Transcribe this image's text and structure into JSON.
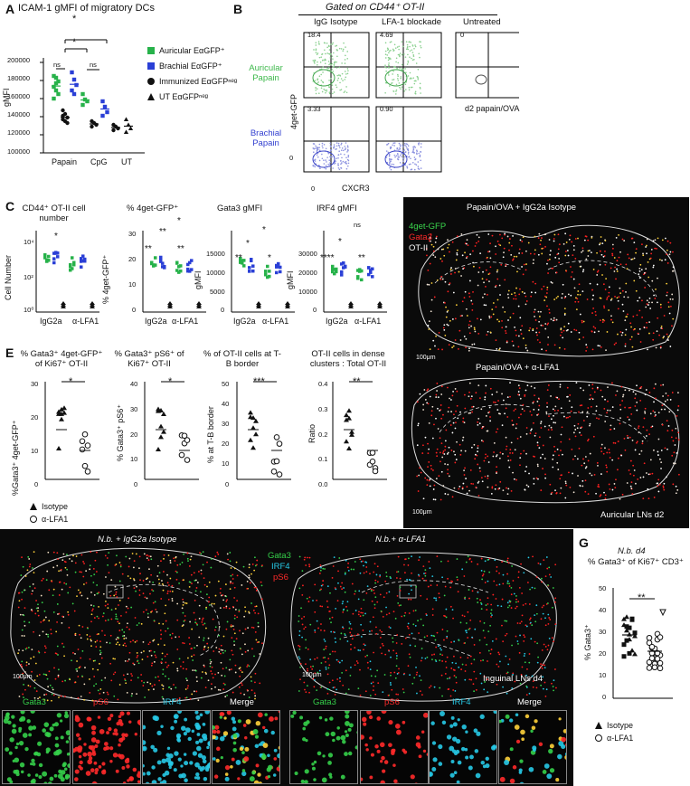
{
  "panels": {
    "A": {
      "letter": "A",
      "title": "ICAM-1 gMFI of migratory DCs",
      "ylabel": "gMFI",
      "yticks": [
        "100000",
        "120000",
        "140000",
        "160000",
        "180000",
        "200000"
      ],
      "xgroups": [
        "Papain",
        "CpG",
        "UT"
      ],
      "sig": [
        "*",
        "*",
        "ns",
        "ns"
      ],
      "legend": [
        "Auricular EαGFP⁺",
        "Brachial EαGFP⁺",
        "Immunized EαGFPⁿᵉᵍ",
        "UT EαGFPⁿᵉᵍ"
      ],
      "colors": {
        "auricular": "#27b24a",
        "brachial": "#2a3fd6",
        "neg": "#111111"
      }
    },
    "B": {
      "letter": "B",
      "header": "Gated on CD44⁺ OT-II",
      "columns": [
        "IgG Isotype",
        "LFA-1 blockade",
        "Untreated"
      ],
      "rows": [
        "Auricular Papain",
        "Brachial Papain"
      ],
      "ylabel": "4get-GFP",
      "xlabel": "CXCR3",
      "untreated_label": "d2 papain/OVA",
      "percents": [
        "18.4",
        "4.69",
        "0",
        "3.33",
        "0.90"
      ],
      "axis_zero": "0"
    },
    "C": {
      "letter": "C",
      "subpanels": [
        {
          "title": "CD44⁺ OT-II cell number",
          "ylabel": "Cell Number",
          "yticks": [
            "10⁰",
            "10²",
            "10⁴"
          ],
          "sig": [
            "*"
          ]
        },
        {
          "title": "% 4get-GFP⁺",
          "ylabel": "% 4get-GFP⁺",
          "yticks": [
            "0",
            "10",
            "20",
            "30"
          ],
          "sig": [
            "*",
            "**",
            "**",
            "**"
          ]
        },
        {
          "title": "Gata3 gMFI",
          "ylabel": "gMFI",
          "yticks": [
            "0",
            "5000",
            "10000",
            "15000"
          ],
          "sig": [
            "*",
            "*",
            "**",
            "*"
          ]
        },
        {
          "title": "IRF4 gMFI",
          "ylabel": "gMFI",
          "yticks": [
            "0",
            "10000",
            "20000",
            "30000"
          ],
          "sig": [
            "ns",
            "*",
            "****",
            "**"
          ]
        }
      ],
      "xlabels": [
        "IgG2a",
        "α-LFA1"
      ]
    },
    "D": {
      "letter": "D",
      "top_title": "Papain/OVA + IgG2a Isotype",
      "bottom_title": "Papain/OVA + α-LFA1",
      "legend": [
        "4get-GFP",
        "Gata3",
        "OT-II"
      ],
      "scale1": "100μm",
      "scale2": "100μm",
      "footer": "Auricular LNs d2"
    },
    "E": {
      "letter": "E",
      "subpanels": [
        {
          "title": "% Gata3⁺ 4get-GFP⁺ of Ki67⁺ OT-II",
          "ylabel": "%Gata3⁺ 4get-GFP⁺",
          "yticks": [
            "0",
            "10",
            "20",
            "30"
          ],
          "sig": "*"
        },
        {
          "title": "% Gata3⁺ pS6⁺ of Ki67⁺ OT-II",
          "ylabel": "% Gata3⁺ pS6⁺",
          "yticks": [
            "0",
            "10",
            "20",
            "30",
            "40"
          ],
          "sig": "*"
        },
        {
          "title": "% of OT-II cells at T-B border",
          "ylabel": "% at T-B border",
          "yticks": [
            "0",
            "10",
            "20",
            "30",
            "40",
            "50"
          ],
          "sig": "***"
        },
        {
          "title": "OT-II cells in dense clusters : Total OT-II",
          "ylabel": "Ratio",
          "yticks": [
            "0.0",
            "0.1",
            "0.2",
            "0.3",
            "0.4"
          ],
          "sig": "**"
        }
      ],
      "legend": [
        "Isotype",
        "α-LFA1"
      ]
    },
    "F": {
      "letter": "F",
      "left_title": "N.b. + IgG2a Isotype",
      "right_title": "N.b.+ α-LFA1",
      "legend": [
        "Gata3",
        "IRF4",
        "pS6"
      ],
      "legend_colors": [
        "#35d04a",
        "#27c9e6",
        "#ff2a2a"
      ],
      "scale": "100μm",
      "footer": "Inguinal LNs d4",
      "thumbs": [
        "Gata3",
        "pS6",
        "IRF4",
        "Merge"
      ]
    },
    "G": {
      "letter": "G",
      "title1": "N.b. d4",
      "title2": "% Gata3⁺ of Ki67⁺ CD3⁺",
      "ylabel": "% Gata3⁺",
      "yticks": [
        "0",
        "10",
        "20",
        "30",
        "40",
        "50"
      ],
      "sig": "**",
      "legend": [
        "Isotype",
        "α-LFA1"
      ]
    }
  }
}
